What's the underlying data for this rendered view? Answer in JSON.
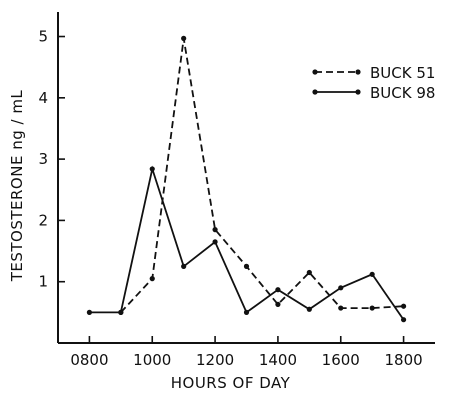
{
  "chart_data": {
    "type": "line",
    "xlabel": "HOURS OF DAY",
    "ylabel": "TESTOSTERONE ng / mL",
    "xlim": [
      700,
      1900
    ],
    "ylim": [
      0,
      5.4
    ],
    "x_ticks": [
      "0800",
      "1000",
      "1200",
      "1400",
      "1600",
      "1800"
    ],
    "x_tick_values": [
      800,
      1000,
      1200,
      1400,
      1600,
      1800
    ],
    "y_ticks": [
      "1",
      "2",
      "3",
      "4",
      "5"
    ],
    "y_tick_values": [
      1,
      2,
      3,
      4,
      5
    ],
    "grid": false,
    "legend_position": "top-right",
    "x": [
      800,
      900,
      1000,
      1100,
      1200,
      1300,
      1400,
      1500,
      1600,
      1700,
      1800
    ],
    "series": [
      {
        "name": "BUCK 51",
        "style": "dashed",
        "x": [
          900,
          1000,
          1100,
          1200,
          1300,
          1400,
          1500,
          1600,
          1700,
          1800
        ],
        "values": [
          0.5,
          1.05,
          4.97,
          1.85,
          1.25,
          0.63,
          1.15,
          0.57,
          0.57,
          0.6
        ]
      },
      {
        "name": "BUCK 98",
        "style": "solid",
        "x": [
          800,
          900,
          1000,
          1100,
          1200,
          1300,
          1400,
          1500,
          1600,
          1700,
          1800
        ],
        "values": [
          0.5,
          0.5,
          2.84,
          1.25,
          1.65,
          0.5,
          0.87,
          0.55,
          0.9,
          1.12,
          0.38
        ]
      }
    ]
  }
}
